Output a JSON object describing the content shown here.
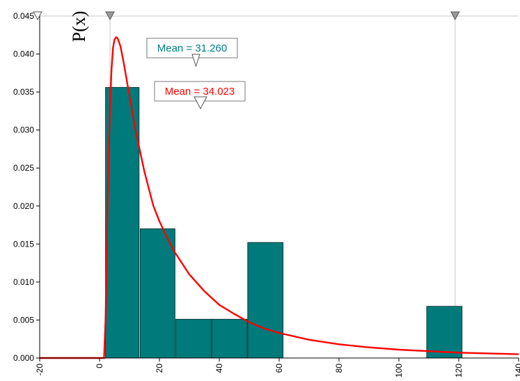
{
  "chart_data": {
    "type": "bar",
    "ylabel": "P(x)",
    "xlim": [
      -20,
      140
    ],
    "ylim": [
      0,
      0.045
    ],
    "x_ticks": [
      "-20",
      "0",
      "20",
      "40",
      "60",
      "80",
      "100",
      "120",
      "140"
    ],
    "y_ticks": [
      "0.000",
      "0.005",
      "0.010",
      "0.015",
      "0.020",
      "0.025",
      "0.030",
      "0.035",
      "0.040",
      "0.045"
    ],
    "bins": [
      {
        "x0": 2,
        "x1": 13.2,
        "value": 0.0356
      },
      {
        "x0": 13.6,
        "x1": 25.2,
        "value": 0.017
      },
      {
        "x0": 25.5,
        "x1": 37.3,
        "value": 0.0051
      },
      {
        "x0": 37.5,
        "x1": 49.3,
        "value": 0.0051
      },
      {
        "x0": 49.5,
        "x1": 61.3,
        "value": 0.0152
      },
      {
        "x0": 109.3,
        "x1": 121.1,
        "value": 0.0068
      }
    ],
    "fitted_curve": {
      "color": "#ff0000",
      "points": [
        [
          -20,
          0
        ],
        [
          0,
          0
        ],
        [
          1.5,
          0
        ],
        [
          2,
          0.005
        ],
        [
          2.5,
          0.016
        ],
        [
          3,
          0.026
        ],
        [
          3.5,
          0.033
        ],
        [
          4,
          0.038
        ],
        [
          4.5,
          0.0408
        ],
        [
          5,
          0.0419
        ],
        [
          5.5,
          0.0422
        ],
        [
          6,
          0.0421
        ],
        [
          7,
          0.041
        ],
        [
          8,
          0.039
        ],
        [
          10,
          0.0345
        ],
        [
          12,
          0.03
        ],
        [
          15,
          0.0245
        ],
        [
          18,
          0.02
        ],
        [
          20,
          0.018
        ],
        [
          23,
          0.0155
        ],
        [
          25,
          0.014
        ],
        [
          30,
          0.011
        ],
        [
          35,
          0.0088
        ],
        [
          40,
          0.007
        ],
        [
          45,
          0.0058
        ],
        [
          50,
          0.0047
        ],
        [
          55,
          0.0039
        ],
        [
          60,
          0.0033
        ],
        [
          70,
          0.0024
        ],
        [
          80,
          0.0018
        ],
        [
          90,
          0.0014
        ],
        [
          100,
          0.0011
        ],
        [
          110,
          0.0009
        ],
        [
          120,
          0.0007
        ],
        [
          130,
          0.0006
        ],
        [
          140,
          0.0005
        ]
      ]
    },
    "markers": {
      "top_triangles_x": [
        3.5,
        118.8
      ],
      "gridline_x": [
        3.5,
        118.8
      ],
      "corner_triangle_x": -20
    },
    "annotations": [
      {
        "text": "Mean = 31.260",
        "color": "#008080",
        "x": 31.26
      },
      {
        "text": "Mean = 34.023",
        "color": "#ff0000",
        "x": 34.023
      }
    ],
    "colors": {
      "bar_fill": "#007a7a",
      "bar_stroke": "#0a3b3b",
      "axis": "#000000",
      "grid": "#c8c8c8"
    }
  }
}
